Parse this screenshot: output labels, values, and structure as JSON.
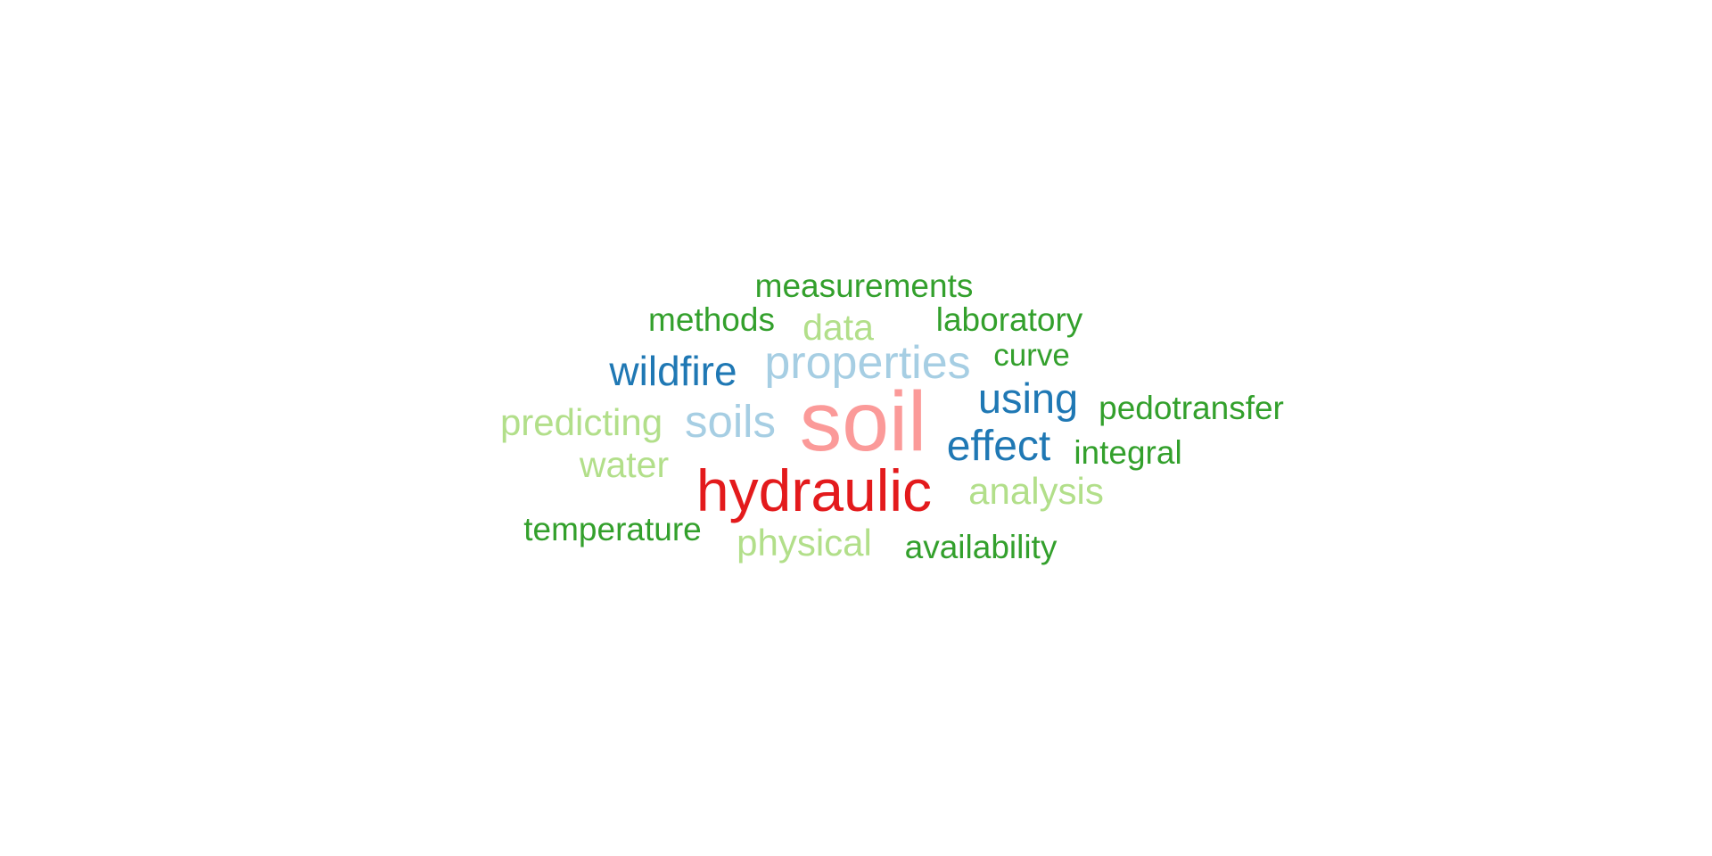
{
  "palette": {
    "dark_green": "#33a02c",
    "light_green": "#b2df8a",
    "dark_blue": "#1f78b4",
    "light_blue": "#a6cee3",
    "pink": "#fb9a99",
    "red": "#e31a1c"
  },
  "words": [
    {
      "text": "measurements",
      "color": "dark_green"
    },
    {
      "text": "methods",
      "color": "dark_green"
    },
    {
      "text": "data",
      "color": "light_green"
    },
    {
      "text": "laboratory",
      "color": "dark_green"
    },
    {
      "text": "wildfire",
      "color": "dark_blue"
    },
    {
      "text": "properties",
      "color": "light_blue"
    },
    {
      "text": "curve",
      "color": "dark_green"
    },
    {
      "text": "using",
      "color": "dark_blue"
    },
    {
      "text": "pedotransfer",
      "color": "dark_green"
    },
    {
      "text": "predicting",
      "color": "light_green"
    },
    {
      "text": "soils",
      "color": "light_blue"
    },
    {
      "text": "soil",
      "color": "pink"
    },
    {
      "text": "effect",
      "color": "dark_blue"
    },
    {
      "text": "integral",
      "color": "dark_green"
    },
    {
      "text": "water",
      "color": "light_green"
    },
    {
      "text": "hydraulic",
      "color": "red"
    },
    {
      "text": "analysis",
      "color": "light_green"
    },
    {
      "text": "temperature",
      "color": "dark_green"
    },
    {
      "text": "physical",
      "color": "light_green"
    },
    {
      "text": "availability",
      "color": "dark_green"
    }
  ]
}
